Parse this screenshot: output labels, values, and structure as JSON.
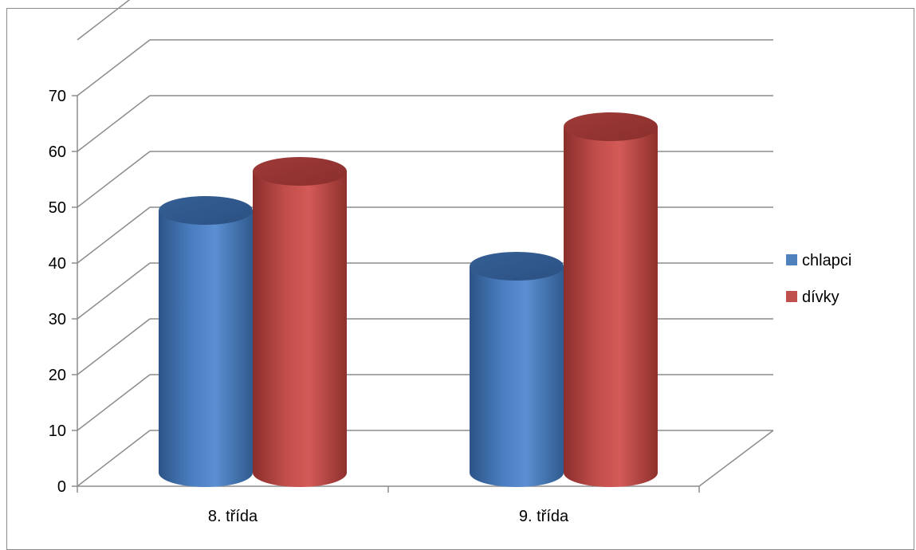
{
  "chart_data": {
    "type": "bar",
    "style": "3d-cylinder",
    "categories": [
      "8. třída",
      "9. třída"
    ],
    "series": [
      {
        "name": "chlapci",
        "values": [
          47,
          37
        ],
        "color": "#4f81bd"
      },
      {
        "name": "dívky",
        "values": [
          54,
          62
        ],
        "color": "#c0504d"
      }
    ],
    "ylim": [
      0,
      80
    ],
    "yticks": [
      0,
      10,
      20,
      30,
      40,
      50,
      60,
      70
    ],
    "grid": true,
    "legend_position": "right"
  }
}
